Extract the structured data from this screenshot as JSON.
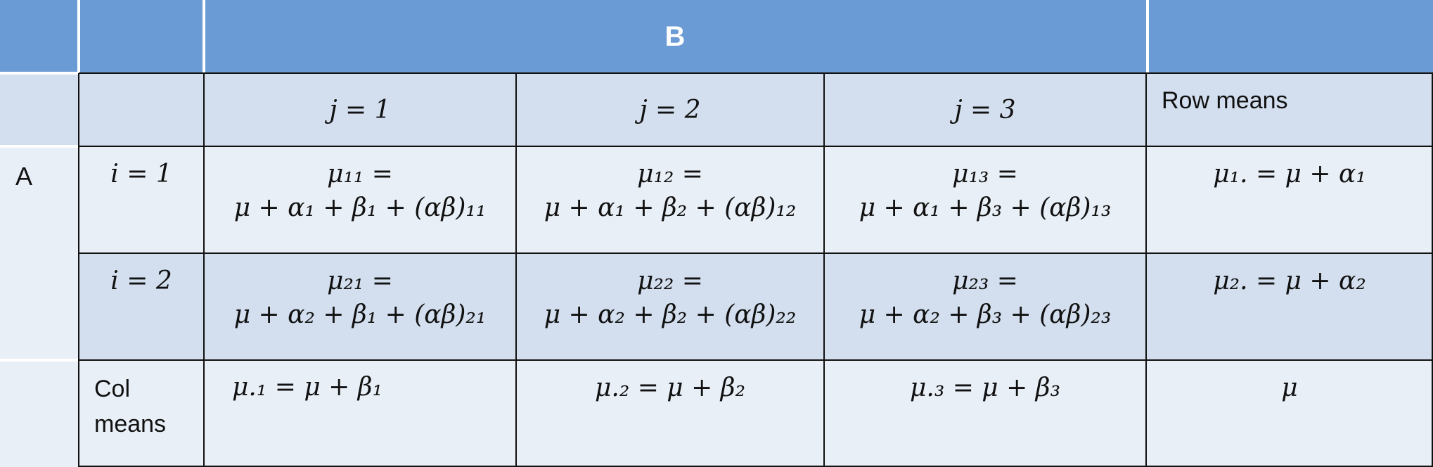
{
  "header": {
    "factor_b": "B"
  },
  "columns": {
    "j1": "j = 1",
    "j2": "j = 2",
    "j3": "j = 3",
    "row_means": "Row means"
  },
  "factor_a": "A",
  "rows": {
    "i1": {
      "label": "i = 1",
      "c1_top": "μ₁₁ =",
      "c1_bottom": "μ + α₁ + β₁ + (αβ)₁₁",
      "c2_top": "μ₁₂ =",
      "c2_bottom": "μ + α₁ + β₂ + (αβ)₁₂",
      "c3_top": "μ₁₃ =",
      "c3_bottom": "μ + α₁ + β₃ + (αβ)₁₃",
      "mean": "μ₁. = μ + α₁"
    },
    "i2": {
      "label": "i = 2",
      "c1_top": "μ₂₁ =",
      "c1_bottom": "μ + α₂ + β₁ + (αβ)₂₁",
      "c2_top": "μ₂₂ =",
      "c2_bottom": "μ + α₂ + β₂ + (αβ)₂₂",
      "c3_top": "μ₂₃ =",
      "c3_bottom": "μ + α₂ + β₃ + (αβ)₂₃",
      "mean": "μ₂. = μ + α₂"
    }
  },
  "col_means": {
    "label_line1": "Col",
    "label_line2": "means",
    "c1": "μ.₁ = μ + β₁",
    "c2": "μ.₂ = μ + β₂",
    "c3": "μ.₃ = μ + β₃",
    "grand": "μ"
  }
}
